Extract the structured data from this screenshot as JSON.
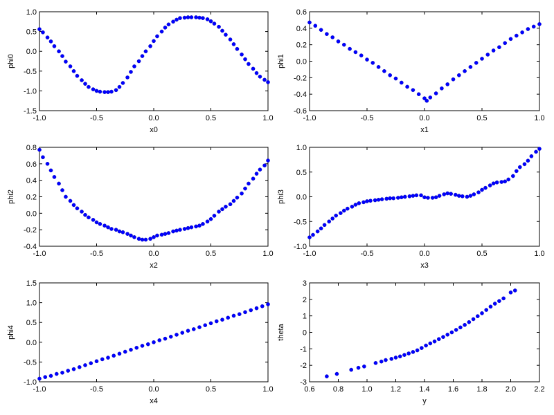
{
  "figure": {
    "background": "#ffffff",
    "marker_color": "#0000ff"
  },
  "chart_data": [
    {
      "type": "scatter",
      "xlabel": "x0",
      "ylabel": "phi0",
      "xlim": [
        -1,
        1
      ],
      "ylim": [
        -1.5,
        1.0
      ],
      "xticks": [
        "-1.0",
        "-0.5",
        "0.0",
        "0.5",
        "1.0"
      ],
      "yticks": [
        "-1.5",
        "-1.0",
        "-0.5",
        "0.0",
        "0.5",
        "1.0"
      ],
      "grid": false,
      "x": [
        -1.0,
        -0.97,
        -0.93,
        -0.9,
        -0.87,
        -0.83,
        -0.8,
        -0.77,
        -0.73,
        -0.7,
        -0.67,
        -0.63,
        -0.6,
        -0.57,
        -0.53,
        -0.5,
        -0.47,
        -0.43,
        -0.4,
        -0.37,
        -0.33,
        -0.3,
        -0.27,
        -0.23,
        -0.2,
        -0.17,
        -0.13,
        -0.1,
        -0.07,
        -0.03,
        0.0,
        0.03,
        0.07,
        0.1,
        0.13,
        0.17,
        0.2,
        0.23,
        0.27,
        0.3,
        0.33,
        0.37,
        0.4,
        0.43,
        0.47,
        0.5,
        0.53,
        0.57,
        0.6,
        0.63,
        0.67,
        0.7,
        0.73,
        0.77,
        0.8,
        0.83,
        0.87,
        0.9,
        0.93,
        0.97,
        1.0
      ],
      "y": [
        0.56,
        0.48,
        0.35,
        0.25,
        0.13,
        0.0,
        -0.12,
        -0.26,
        -0.38,
        -0.5,
        -0.62,
        -0.73,
        -0.82,
        -0.9,
        -0.96,
        -1.0,
        -1.02,
        -1.03,
        -1.03,
        -1.02,
        -0.98,
        -0.9,
        -0.8,
        -0.66,
        -0.52,
        -0.38,
        -0.25,
        -0.12,
        0.0,
        0.13,
        0.26,
        0.38,
        0.5,
        0.6,
        0.68,
        0.75,
        0.8,
        0.84,
        0.85,
        0.86,
        0.86,
        0.86,
        0.85,
        0.84,
        0.81,
        0.76,
        0.7,
        0.62,
        0.52,
        0.42,
        0.3,
        0.18,
        0.06,
        -0.08,
        -0.2,
        -0.32,
        -0.44,
        -0.55,
        -0.64,
        -0.72,
        -0.78
      ]
    },
    {
      "type": "scatter",
      "xlabel": "x1",
      "ylabel": "phi1",
      "xlim": [
        -1,
        1
      ],
      "ylim": [
        -0.6,
        0.6
      ],
      "xticks": [
        "-1.0",
        "-0.5",
        "0.0",
        "0.5",
        "1.0"
      ],
      "yticks": [
        "-0.6",
        "-0.4",
        "-0.2",
        "0.0",
        "0.2",
        "0.4",
        "0.6"
      ],
      "grid": false,
      "x": [
        -1.0,
        -0.95,
        -0.9,
        -0.85,
        -0.8,
        -0.75,
        -0.7,
        -0.65,
        -0.6,
        -0.55,
        -0.5,
        -0.45,
        -0.4,
        -0.35,
        -0.3,
        -0.25,
        -0.2,
        -0.15,
        -0.1,
        -0.05,
        0.0,
        0.02,
        0.05,
        0.1,
        0.15,
        0.2,
        0.25,
        0.3,
        0.35,
        0.4,
        0.45,
        0.5,
        0.55,
        0.6,
        0.65,
        0.7,
        0.75,
        0.8,
        0.85,
        0.9,
        0.95,
        1.0
      ],
      "y": [
        0.47,
        0.43,
        0.38,
        0.33,
        0.29,
        0.24,
        0.2,
        0.15,
        0.11,
        0.07,
        0.02,
        -0.02,
        -0.07,
        -0.12,
        -0.17,
        -0.21,
        -0.26,
        -0.31,
        -0.35,
        -0.4,
        -0.45,
        -0.48,
        -0.44,
        -0.39,
        -0.33,
        -0.28,
        -0.22,
        -0.17,
        -0.12,
        -0.07,
        -0.02,
        0.03,
        0.08,
        0.13,
        0.17,
        0.22,
        0.27,
        0.31,
        0.35,
        0.39,
        0.42,
        0.45
      ]
    },
    {
      "type": "scatter",
      "xlabel": "x2",
      "ylabel": "phi2",
      "xlim": [
        -1,
        1
      ],
      "ylim": [
        -0.4,
        0.8
      ],
      "xticks": [
        "-1.0",
        "-0.5",
        "0.0",
        "0.5",
        "1.0"
      ],
      "yticks": [
        "-0.4",
        "-0.2",
        "0.0",
        "0.2",
        "0.4",
        "0.6",
        "0.8"
      ],
      "grid": false,
      "x": [
        -1.0,
        -0.97,
        -0.93,
        -0.9,
        -0.87,
        -0.83,
        -0.8,
        -0.77,
        -0.73,
        -0.7,
        -0.67,
        -0.63,
        -0.6,
        -0.57,
        -0.53,
        -0.5,
        -0.47,
        -0.43,
        -0.4,
        -0.37,
        -0.33,
        -0.3,
        -0.27,
        -0.23,
        -0.2,
        -0.17,
        -0.13,
        -0.1,
        -0.07,
        -0.03,
        0.0,
        0.03,
        0.07,
        0.1,
        0.13,
        0.17,
        0.2,
        0.23,
        0.27,
        0.3,
        0.33,
        0.37,
        0.4,
        0.43,
        0.47,
        0.5,
        0.53,
        0.57,
        0.6,
        0.63,
        0.67,
        0.7,
        0.73,
        0.77,
        0.8,
        0.83,
        0.87,
        0.9,
        0.93,
        0.97,
        1.0
      ],
      "y": [
        0.77,
        0.68,
        0.6,
        0.52,
        0.44,
        0.36,
        0.28,
        0.2,
        0.15,
        0.1,
        0.06,
        0.02,
        -0.02,
        -0.05,
        -0.08,
        -0.11,
        -0.13,
        -0.15,
        -0.17,
        -0.19,
        -0.2,
        -0.22,
        -0.23,
        -0.25,
        -0.27,
        -0.29,
        -0.31,
        -0.32,
        -0.32,
        -0.31,
        -0.29,
        -0.27,
        -0.26,
        -0.25,
        -0.24,
        -0.22,
        -0.21,
        -0.2,
        -0.19,
        -0.18,
        -0.17,
        -0.16,
        -0.15,
        -0.13,
        -0.1,
        -0.07,
        -0.03,
        0.02,
        0.05,
        0.08,
        0.11,
        0.15,
        0.19,
        0.24,
        0.3,
        0.36,
        0.42,
        0.48,
        0.53,
        0.58,
        0.64
      ]
    },
    {
      "type": "scatter",
      "xlabel": "x3",
      "ylabel": "phi3",
      "xlim": [
        -1,
        1
      ],
      "ylim": [
        -1.0,
        1.0
      ],
      "xticks": [
        "-1.0",
        "-0.5",
        "0.0",
        "0.5",
        "1.0"
      ],
      "yticks": [
        "-1.0",
        "-0.5",
        "0.0",
        "0.5",
        "1.0"
      ],
      "grid": false,
      "x": [
        -1.0,
        -0.97,
        -0.93,
        -0.9,
        -0.87,
        -0.83,
        -0.8,
        -0.77,
        -0.73,
        -0.7,
        -0.67,
        -0.63,
        -0.6,
        -0.57,
        -0.53,
        -0.5,
        -0.47,
        -0.43,
        -0.4,
        -0.37,
        -0.33,
        -0.3,
        -0.27,
        -0.23,
        -0.2,
        -0.17,
        -0.13,
        -0.1,
        -0.07,
        -0.03,
        0.0,
        0.03,
        0.07,
        0.1,
        0.13,
        0.17,
        0.2,
        0.23,
        0.27,
        0.3,
        0.33,
        0.37,
        0.4,
        0.43,
        0.47,
        0.5,
        0.53,
        0.57,
        0.6,
        0.63,
        0.67,
        0.7,
        0.73,
        0.77,
        0.8,
        0.83,
        0.87,
        0.9,
        0.93,
        0.97,
        1.0
      ],
      "y": [
        -0.82,
        -0.77,
        -0.7,
        -0.64,
        -0.57,
        -0.5,
        -0.44,
        -0.38,
        -0.33,
        -0.28,
        -0.24,
        -0.2,
        -0.16,
        -0.13,
        -0.11,
        -0.09,
        -0.08,
        -0.07,
        -0.06,
        -0.05,
        -0.04,
        -0.03,
        -0.03,
        -0.02,
        -0.01,
        0.0,
        0.01,
        0.02,
        0.03,
        0.03,
        -0.01,
        -0.02,
        -0.02,
        -0.01,
        0.02,
        0.05,
        0.07,
        0.06,
        0.04,
        0.02,
        0.01,
        0.0,
        0.02,
        0.05,
        0.09,
        0.14,
        0.18,
        0.23,
        0.27,
        0.29,
        0.3,
        0.31,
        0.35,
        0.42,
        0.52,
        0.6,
        0.66,
        0.73,
        0.82,
        0.91,
        0.97
      ]
    },
    {
      "type": "scatter",
      "xlabel": "x4",
      "ylabel": "phi4",
      "xlim": [
        -1,
        1
      ],
      "ylim": [
        -1.0,
        1.5
      ],
      "xticks": [
        "-1.0",
        "-0.5",
        "0.0",
        "0.5",
        "1.0"
      ],
      "yticks": [
        "-1.0",
        "-0.5",
        "0.0",
        "0.5",
        "1.0",
        "1.5"
      ],
      "grid": false,
      "x": [
        -1.0,
        -0.95,
        -0.9,
        -0.85,
        -0.8,
        -0.75,
        -0.7,
        -0.65,
        -0.6,
        -0.55,
        -0.5,
        -0.45,
        -0.4,
        -0.35,
        -0.3,
        -0.25,
        -0.2,
        -0.15,
        -0.1,
        -0.05,
        0.0,
        0.05,
        0.1,
        0.15,
        0.2,
        0.25,
        0.3,
        0.35,
        0.4,
        0.45,
        0.5,
        0.55,
        0.6,
        0.65,
        0.7,
        0.75,
        0.8,
        0.85,
        0.9,
        0.95,
        1.0
      ],
      "y": [
        -0.92,
        -0.88,
        -0.85,
        -0.8,
        -0.77,
        -0.72,
        -0.68,
        -0.63,
        -0.58,
        -0.53,
        -0.48,
        -0.43,
        -0.39,
        -0.34,
        -0.29,
        -0.24,
        -0.19,
        -0.14,
        -0.09,
        -0.05,
        0.0,
        0.05,
        0.09,
        0.14,
        0.19,
        0.24,
        0.29,
        0.33,
        0.38,
        0.43,
        0.48,
        0.53,
        0.57,
        0.62,
        0.67,
        0.71,
        0.76,
        0.81,
        0.86,
        0.91,
        0.96
      ]
    },
    {
      "type": "scatter",
      "xlabel": "y",
      "ylabel": "theta",
      "xlim": [
        0.6,
        2.2
      ],
      "ylim": [
        -3,
        3
      ],
      "xticks": [
        "0.6",
        "0.8",
        "1.0",
        "1.2",
        "1.4",
        "1.6",
        "1.8",
        "2.0",
        "2.2"
      ],
      "yticks": [
        "-3",
        "-2",
        "-1",
        "0",
        "1",
        "2",
        "3"
      ],
      "grid": false,
      "x": [
        0.72,
        0.79,
        0.89,
        0.94,
        0.98,
        1.06,
        1.1,
        1.13,
        1.17,
        1.2,
        1.23,
        1.26,
        1.29,
        1.32,
        1.35,
        1.38,
        1.41,
        1.44,
        1.47,
        1.5,
        1.53,
        1.56,
        1.59,
        1.62,
        1.65,
        1.68,
        1.71,
        1.74,
        1.77,
        1.8,
        1.83,
        1.86,
        1.89,
        1.92,
        1.95,
        2.0,
        2.03
      ],
      "y": [
        -2.67,
        -2.52,
        -2.27,
        -2.15,
        -2.07,
        -1.86,
        -1.77,
        -1.68,
        -1.61,
        -1.53,
        -1.46,
        -1.37,
        -1.28,
        -1.19,
        -1.09,
        -0.95,
        -0.8,
        -0.67,
        -0.55,
        -0.41,
        -0.28,
        -0.14,
        0.0,
        0.15,
        0.3,
        0.45,
        0.62,
        0.8,
        0.98,
        1.16,
        1.36,
        1.56,
        1.74,
        1.9,
        2.06,
        2.42,
        2.54
      ]
    }
  ]
}
